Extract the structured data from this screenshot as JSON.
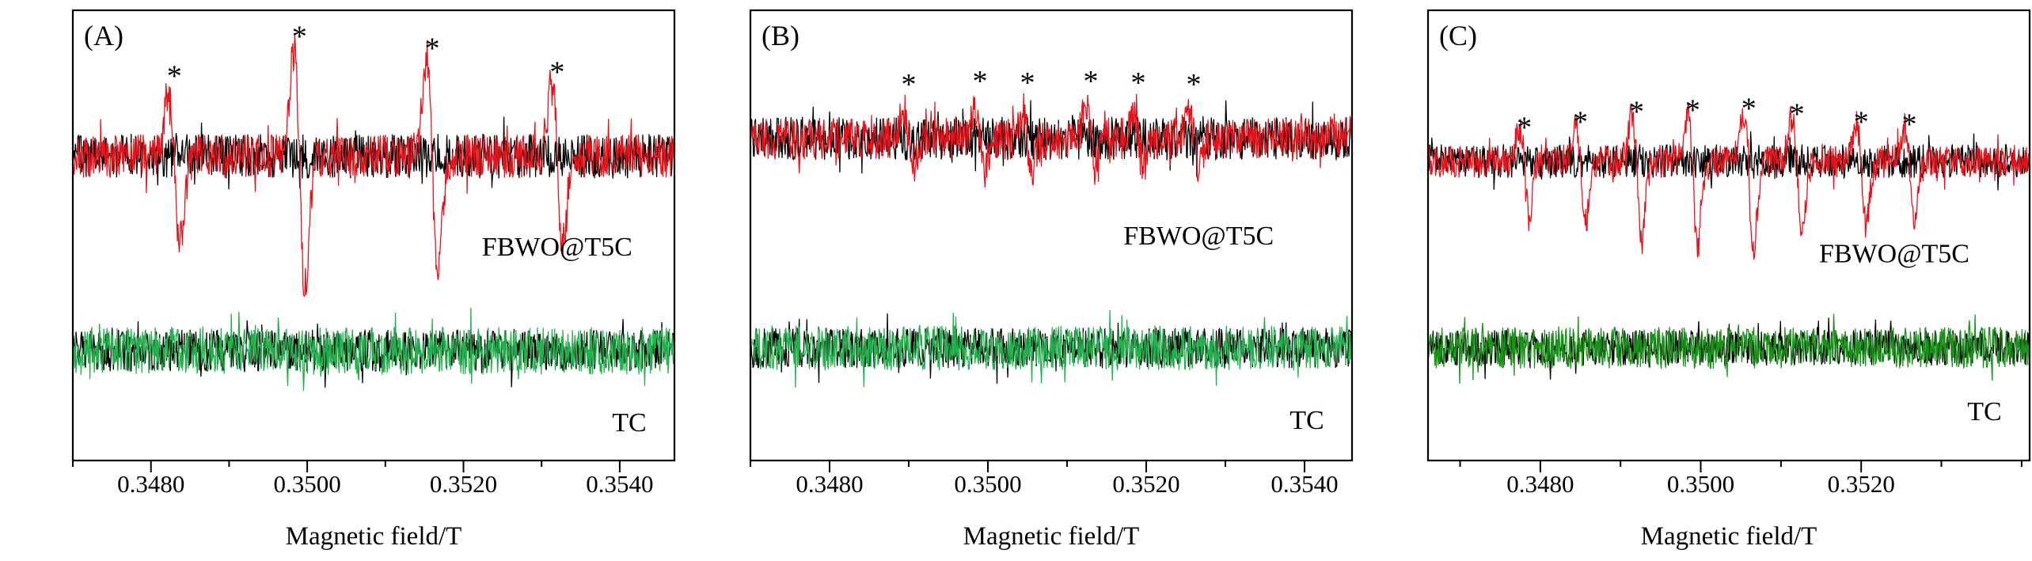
{
  "figure": {
    "description": "EPR spectra comparison of FBWO@T5C vs TC",
    "background": "#ffffff",
    "text_color": "#000000",
    "peak_marker_color": "#000000"
  },
  "chart_data": [
    {
      "panel": "(A)",
      "type": "line",
      "xlabel": "Magnetic field/T",
      "xlim": [
        0.347,
        0.3547
      ],
      "xticks": [
        0.348,
        0.35,
        0.352,
        0.354
      ],
      "xtick_labels": [
        "0.3480",
        "0.3500",
        "0.3520",
        "0.3540"
      ],
      "minor_tick_step": 0.001,
      "grid": false,
      "peak_marker": "*",
      "asterisk_fields": [
        0.3483,
        0.3499,
        0.3516,
        0.3532
      ],
      "asterisk_gap": 4,
      "group_centers": {
        "top": 0.324,
        "bottom": 0.756
      },
      "series": [
        {
          "name": "FBWO@T5C reference noise (black)",
          "color": "#000000",
          "group": "top",
          "noise_amp": 28,
          "seed": 101
        },
        {
          "name": "FBWO@T5C",
          "color": "#e8131a",
          "group": "top",
          "noise_amp": 27,
          "seed": 102,
          "peak_width": 7e-05,
          "down_factor": 1.25,
          "peaks": [
            {
              "x": 0.3483,
              "amp": 85
            },
            {
              "x": 0.3499,
              "amp": 135
            },
            {
              "x": 0.3516,
              "amp": 120
            },
            {
              "x": 0.3532,
              "amp": 90
            }
          ],
          "label": {
            "text": "FBWO@T5C",
            "x_frac": 0.805,
            "y_frac": 0.545
          }
        },
        {
          "name": "TC reference noise (black)",
          "color": "#000000",
          "group": "bottom",
          "noise_amp": 26,
          "seed": 103
        },
        {
          "name": "TC",
          "color": "#22b14c",
          "group": "bottom",
          "noise_amp": 30,
          "seed": 104,
          "label": {
            "text": "TC",
            "x_frac": 0.925,
            "y_frac": 0.935
          }
        }
      ]
    },
    {
      "panel": "(B)",
      "type": "line",
      "xlabel": "Magnetic field/T",
      "xlim": [
        0.347,
        0.3546
      ],
      "xticks": [
        0.348,
        0.35,
        0.352,
        0.354
      ],
      "xtick_labels": [
        "0.3480",
        "0.3500",
        "0.3520",
        "0.3540"
      ],
      "minor_tick_step": 0.001,
      "grid": false,
      "peak_marker": "*",
      "asterisk_fields": [
        0.349,
        0.3499,
        0.3505,
        0.3513,
        0.3519,
        0.3526
      ],
      "asterisk_gap": 24,
      "group_centers": {
        "top": 0.285,
        "bottom": 0.75
      },
      "series": [
        {
          "name": "FBWO@T5C reference noise (black)",
          "color": "#000000",
          "group": "top",
          "noise_amp": 27,
          "seed": 201
        },
        {
          "name": "FBWO@T5C",
          "color": "#e8131a",
          "group": "top",
          "noise_amp": 26,
          "seed": 202,
          "peak_width": 6e-05,
          "down_factor": 1.0,
          "peaks": [
            {
              "x": 0.349,
              "amp": 32
            },
            {
              "x": 0.3499,
              "amp": 36
            },
            {
              "x": 0.3505,
              "amp": 34
            },
            {
              "x": 0.3513,
              "amp": 36
            },
            {
              "x": 0.3519,
              "amp": 34
            },
            {
              "x": 0.3526,
              "amp": 32
            }
          ],
          "label": {
            "text": "FBWO@T5C",
            "x_frac": 0.745,
            "y_frac": 0.52
          }
        },
        {
          "name": "TC reference noise (black)",
          "color": "#000000",
          "group": "bottom",
          "noise_amp": 25,
          "seed": 203
        },
        {
          "name": "TC",
          "color": "#22b14c",
          "group": "bottom",
          "noise_amp": 28,
          "seed": 204,
          "label": {
            "text": "TC",
            "x_frac": 0.925,
            "y_frac": 0.93
          }
        }
      ]
    },
    {
      "panel": "(C)",
      "type": "line",
      "xlabel": "Magnetic field/T",
      "xlim": [
        0.3466,
        0.3541
      ],
      "xticks": [
        0.348,
        0.35,
        0.352
      ],
      "xtick_labels": [
        "0.3480",
        "0.3500",
        "0.3520"
      ],
      "minor_tick_step": 0.001,
      "grid": false,
      "peak_marker": "*",
      "asterisk_fields": [
        0.3478,
        0.3485,
        0.3492,
        0.3499,
        0.3506,
        0.3512,
        0.352,
        0.3526
      ],
      "asterisk_gap": -8,
      "group_centers": {
        "top": 0.335,
        "bottom": 0.75
      },
      "series": [
        {
          "name": "FBWO@T5C reference noise (black)",
          "color": "#000000",
          "group": "top",
          "noise_amp": 21,
          "seed": 301
        },
        {
          "name": "FBWO@T5C",
          "color": "#e8131a",
          "group": "top",
          "noise_amp": 20,
          "seed": 302,
          "peak_width": 6e-05,
          "down_factor": 1.8,
          "peaks": [
            {
              "x": 0.3478,
              "amp": 38
            },
            {
              "x": 0.3485,
              "amp": 45
            },
            {
              "x": 0.3492,
              "amp": 58
            },
            {
              "x": 0.3499,
              "amp": 60
            },
            {
              "x": 0.3506,
              "amp": 62
            },
            {
              "x": 0.3512,
              "amp": 55
            },
            {
              "x": 0.352,
              "amp": 45
            },
            {
              "x": 0.3526,
              "amp": 42
            }
          ],
          "label": {
            "text": "FBWO@T5C",
            "x_frac": 0.775,
            "y_frac": 0.56
          }
        },
        {
          "name": "TC reference noise (black)",
          "color": "#000000",
          "group": "bottom",
          "noise_amp": 22,
          "seed": 303
        },
        {
          "name": "TC",
          "color": "#179317",
          "group": "bottom",
          "noise_amp": 26,
          "seed": 304,
          "label": {
            "text": "TC",
            "x_frac": 0.925,
            "y_frac": 0.91
          }
        }
      ]
    }
  ]
}
